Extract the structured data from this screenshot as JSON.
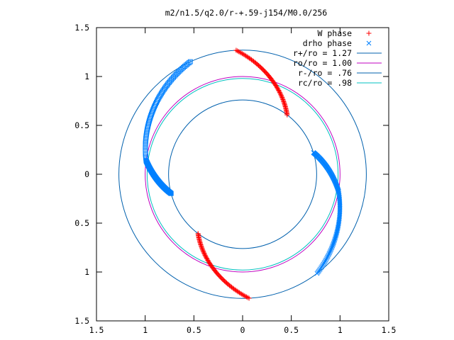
{
  "chart_data": {
    "type": "scatter",
    "title": "m2/n1.5/q2.0/r-+.59-j154/M0.0/256",
    "xlabel": "",
    "ylabel": "",
    "xlim": [
      -1.5,
      1.5
    ],
    "ylim": [
      -1.5,
      1.5
    ],
    "x_ticks": [
      "1.5",
      "1",
      "0.5",
      "0",
      "0.5",
      "1",
      "1.5"
    ],
    "y_ticks": [
      "1.5",
      "1",
      "0.5",
      "0",
      "0.5",
      "1",
      "1.5"
    ],
    "grid": false,
    "legend_position": "top-right",
    "series": [
      {
        "name": "W phase",
        "marker": "+",
        "color": "#ff0000",
        "arcs": [
          {
            "r_from": 1.27,
            "r_to": 0.76,
            "theta_from_deg": 93,
            "theta_to_deg": 53
          },
          {
            "r_from": 0.76,
            "r_to": 1.27,
            "theta_from_deg": 233,
            "theta_to_deg": 273
          }
        ]
      },
      {
        "name": "drho phase",
        "marker": "x",
        "color": "#0080ff",
        "arcs": [
          {
            "r_from": 0.76,
            "r_to": 1.0,
            "theta_from_deg": 17,
            "theta_to_deg": -10
          },
          {
            "r_from": 1.0,
            "r_to": 1.27,
            "theta_from_deg": -10,
            "theta_to_deg": -53
          }
        ]
      },
      {
        "name": "",
        "marker": "square",
        "color": "#0080ff",
        "arcs": [
          {
            "r_from": 1.27,
            "r_to": 1.0,
            "theta_from_deg": 115,
            "theta_to_deg": 172
          },
          {
            "r_from": 1.0,
            "r_to": 0.76,
            "theta_from_deg": 172,
            "theta_to_deg": 195
          }
        ]
      },
      {
        "name": "r+/ro = 1.27",
        "type": "circle",
        "radius": 1.27,
        "color": "#0060ad"
      },
      {
        "name": "ro/ro = 1.00",
        "type": "circle",
        "radius": 1.0,
        "color": "#c000c0"
      },
      {
        "name": "r-/ro = .76",
        "type": "circle",
        "radius": 0.76,
        "color": "#0060ad"
      },
      {
        "name": "rc/ro = .98",
        "type": "circle",
        "radius": 0.98,
        "color": "#00c0c0"
      }
    ]
  }
}
